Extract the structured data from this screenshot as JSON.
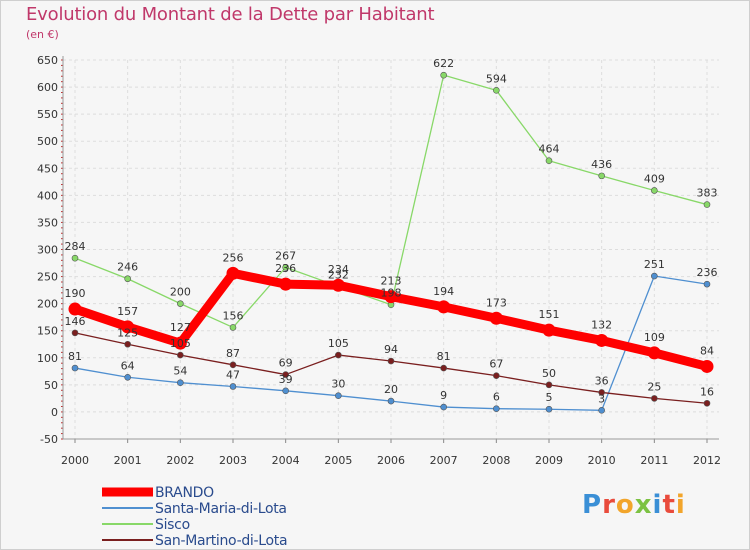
{
  "title": "Evolution du Montant de la Dette par Habitant",
  "subtitle": "(en €)",
  "logo": "Proxiti",
  "chart_data": {
    "type": "line",
    "title": "Evolution du Montant de la Dette par Habitant",
    "subtitle": "(en €)",
    "x": [
      "2000",
      "2001",
      "2002",
      "2003",
      "2004",
      "2005",
      "2006",
      "2007",
      "2008",
      "2009",
      "2010",
      "2011",
      "2012"
    ],
    "ylim": [
      -50,
      650
    ],
    "yticks": [
      "-50",
      "0",
      "50",
      "100",
      "150",
      "200",
      "250",
      "300",
      "350",
      "400",
      "450",
      "500",
      "550",
      "600",
      "650"
    ],
    "grid": true,
    "legend_position": "bottom-left",
    "series": [
      {
        "name": "BRANDO",
        "color": "#ff0000",
        "values": [
          190,
          157,
          127,
          256,
          236,
          234,
          213,
          194,
          173,
          151,
          132,
          109,
          84
        ],
        "labels": [
          "190",
          "157",
          "127",
          "256",
          "236",
          "234",
          "213",
          "194",
          "173",
          "151",
          "132",
          "109",
          "84"
        ]
      },
      {
        "name": "Santa-Maria-di-Lota",
        "color": "#4f8fd0",
        "values": [
          81,
          64,
          54,
          47,
          39,
          30,
          20,
          9,
          6,
          5,
          3,
          251,
          236
        ],
        "labels": [
          "81",
          "64",
          "54",
          "47",
          "39",
          "30",
          "20",
          "9",
          "6",
          "5",
          "3",
          "251",
          "236"
        ]
      },
      {
        "name": "Sisco",
        "color": "#88d868",
        "values": [
          284,
          246,
          200,
          156,
          267,
          232,
          198,
          622,
          594,
          464,
          436,
          409,
          383
        ],
        "labels": [
          "284",
          "246",
          "200",
          "156",
          "267",
          "232",
          "198",
          "622",
          "594",
          "464",
          "436",
          "409",
          "383"
        ]
      },
      {
        "name": "San-Martino-di-Lota",
        "color": "#7a1f1f",
        "values": [
          146,
          125,
          105,
          87,
          69,
          105,
          94,
          81,
          67,
          50,
          36,
          25,
          16
        ],
        "labels": [
          "146",
          "125",
          "105",
          "87",
          "69",
          "105",
          "94",
          "81",
          "67",
          "50",
          "36",
          "25",
          "16"
        ]
      }
    ]
  }
}
